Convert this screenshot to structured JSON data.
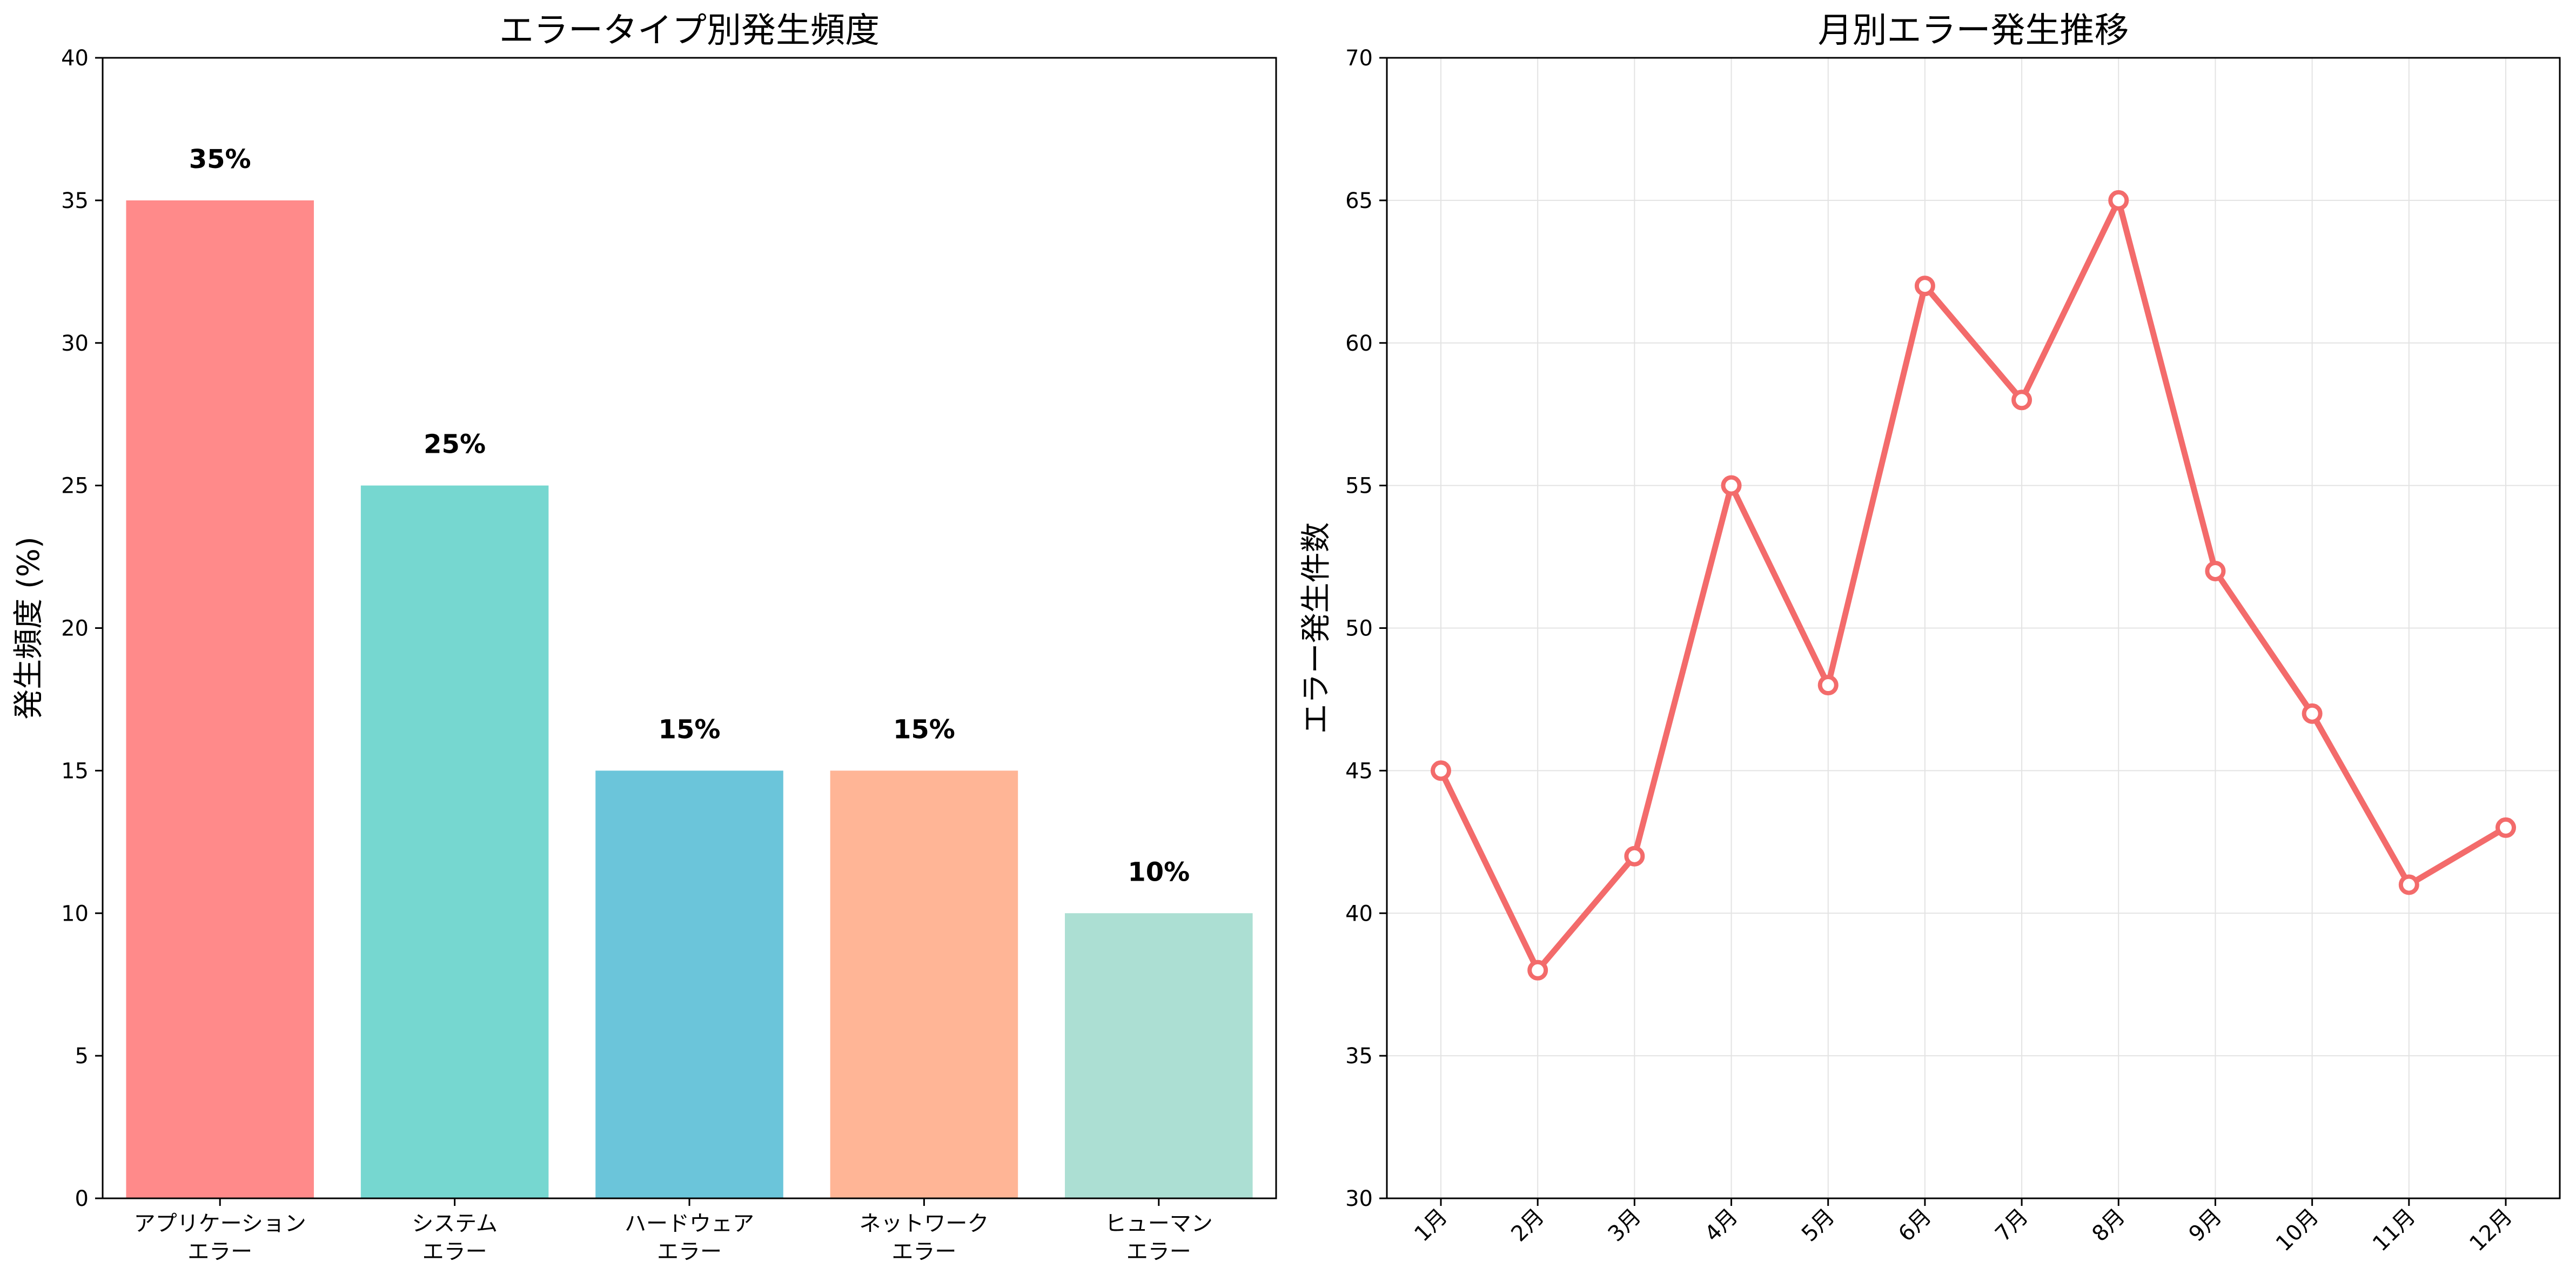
{
  "chart_data": [
    {
      "type": "bar",
      "title": "エラータイプ別発生頻度",
      "xlabel": "",
      "ylabel": "発生頻度 (%)",
      "ylim": [
        0,
        40
      ],
      "yticks": [
        0,
        5,
        10,
        15,
        20,
        25,
        30,
        35,
        40
      ],
      "categories": [
        [
          "アプリケーション",
          "エラー"
        ],
        [
          "システム",
          "エラー"
        ],
        [
          "ハードウェア",
          "エラー"
        ],
        [
          "ネットワーク",
          "エラー"
        ],
        [
          "ヒューマン",
          "エラー"
        ]
      ],
      "values": [
        35,
        25,
        15,
        15,
        10
      ],
      "value_labels": [
        "35%",
        "25%",
        "15%",
        "15%",
        "10%"
      ],
      "colors": [
        "#ff8a8a",
        "#76d7d0",
        "#6bc5da",
        "#ffb596",
        "#acdfd3"
      ],
      "grid": false
    },
    {
      "type": "line",
      "title": "月別エラー発生推移",
      "xlabel": "",
      "ylabel": "エラー発生件数",
      "ylim": [
        30,
        70
      ],
      "yticks": [
        30,
        35,
        40,
        45,
        50,
        55,
        60,
        65,
        70
      ],
      "x": [
        "1月",
        "2月",
        "3月",
        "4月",
        "5月",
        "6月",
        "7月",
        "8月",
        "9月",
        "10月",
        "11月",
        "12月"
      ],
      "values": [
        45,
        38,
        42,
        55,
        48,
        62,
        58,
        65,
        52,
        47,
        41,
        43
      ],
      "color": "#f36b6b",
      "grid": true
    }
  ]
}
